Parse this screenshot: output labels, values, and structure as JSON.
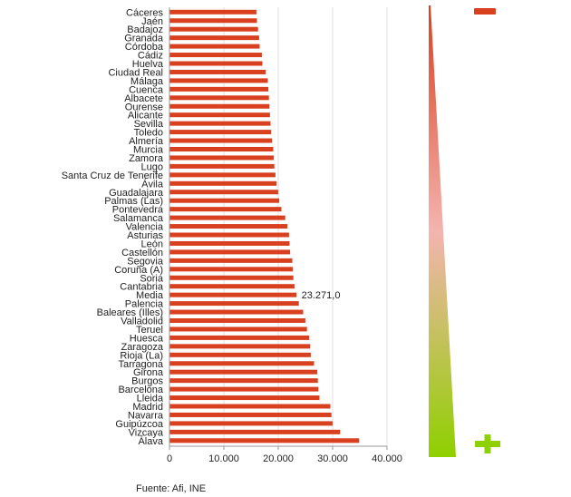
{
  "chart_data": {
    "type": "bar",
    "orientation": "horizontal",
    "categories": [
      "Cáceres",
      "Jaén",
      "Badajoz",
      "Granada",
      "Córdoba",
      "Cádiz",
      "Huelva",
      "Ciudad Real",
      "Málaga",
      "Cuenca",
      "Albacete",
      "Ourense",
      "Alicante",
      "Sevilla",
      "Toledo",
      "Almería",
      "Murcia",
      "Zamora",
      "Lugo",
      "Santa Cruz de Tenerife",
      "Ávila",
      "Guadalajara",
      "Palmas (Las)",
      "Pontevedra",
      "Salamanca",
      "Valencia",
      "Asturias",
      "León",
      "Castellón",
      "Segovia",
      "Coruña (A)",
      "Soria",
      "Cantabria",
      "Media",
      "Palencia",
      "Baleares (Illes)",
      "Valladolid",
      "Teruel",
      "Huesca",
      "Zaragoza",
      "Rioja (La)",
      "Tarragona",
      "Girona",
      "Burgos",
      "Barcelona",
      "Lleida",
      "Madrid",
      "Navarra",
      "Guipúzcoa",
      "Vizcaya",
      "Álava"
    ],
    "values": [
      15900,
      16000,
      16200,
      16400,
      16500,
      16900,
      17000,
      17600,
      18000,
      18100,
      18200,
      18300,
      18400,
      18500,
      18600,
      18800,
      19000,
      19100,
      19200,
      19400,
      19600,
      19900,
      20100,
      20500,
      21200,
      21600,
      21900,
      22000,
      22100,
      22500,
      22600,
      22700,
      22900,
      23271,
      23700,
      24500,
      24900,
      25200,
      25600,
      25800,
      25900,
      26500,
      27100,
      27200,
      27300,
      27500,
      29500,
      29700,
      29900,
      31300,
      34800
    ],
    "highlight": {
      "category": "Media",
      "label": "23.271,0"
    },
    "xlim": [
      0,
      40000
    ],
    "xticks": [
      "0",
      "10.000",
      "20.000",
      "30.000",
      "40.000"
    ],
    "bar_color": "#d9401f",
    "grid": true,
    "legend": {
      "type": "gradient-wedge",
      "top_color": "#d9401f",
      "mid_color": "#f4b4b0",
      "bottom_color": "#8fd000",
      "top_symbol": "minus",
      "bottom_symbol": "plus"
    }
  },
  "source_note": "Fuente: Afi, INE"
}
